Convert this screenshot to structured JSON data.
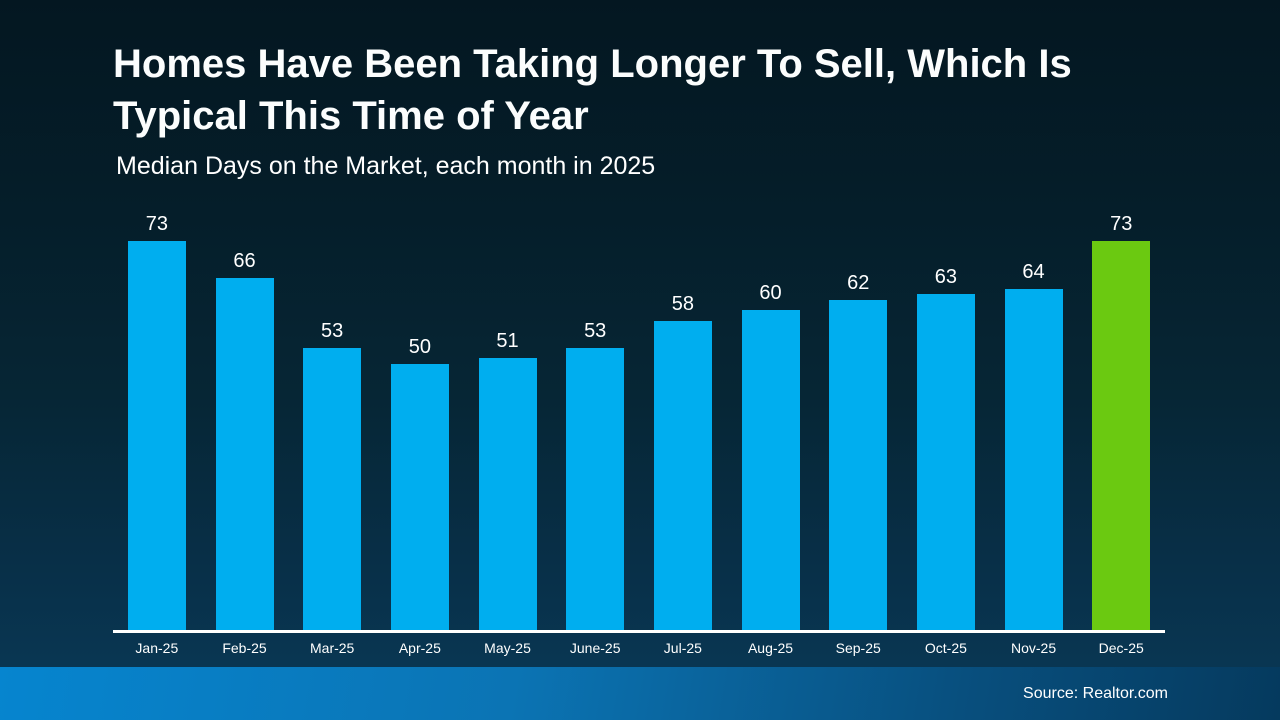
{
  "slide": {
    "title_line1": "Homes Have Been Taking Longer To Sell, Which Is",
    "title_line2": "Typical This Time of Year",
    "subtitle": "Median Days on the Market, each month in 2025",
    "source": "Source: Realtor.com"
  },
  "colors": {
    "bar": "#00AEEF",
    "highlight": "#6BC911",
    "axis": "#FFFFFF",
    "text": "#FFFFFF",
    "background_top": "#041721",
    "background_bottom": "#0A3A58",
    "footer_left": "#0685CF",
    "footer_right": "#053A5E"
  },
  "chart_data": {
    "type": "bar",
    "title": "Homes Have Been Taking Longer To Sell, Which Is Typical This Time of Year",
    "subtitle": "Median Days on the Market, each month in 2025",
    "categories": [
      "Jan-25",
      "Feb-25",
      "Mar-25",
      "Apr-25",
      "May-25",
      "June-25",
      "Jul-25",
      "Aug-25",
      "Sep-25",
      "Oct-25",
      "Nov-25",
      "Dec-25"
    ],
    "values": [
      73,
      66,
      53,
      50,
      51,
      53,
      58,
      60,
      62,
      63,
      64,
      73
    ],
    "highlight_index": 11,
    "highlight_category": "Dec-25",
    "xlabel": "",
    "ylabel": "Median Days on the Market",
    "ylim": [
      0,
      73
    ],
    "grid": false,
    "legend_position": "none",
    "data_labels": true,
    "annotation": "Source: Realtor.com"
  }
}
